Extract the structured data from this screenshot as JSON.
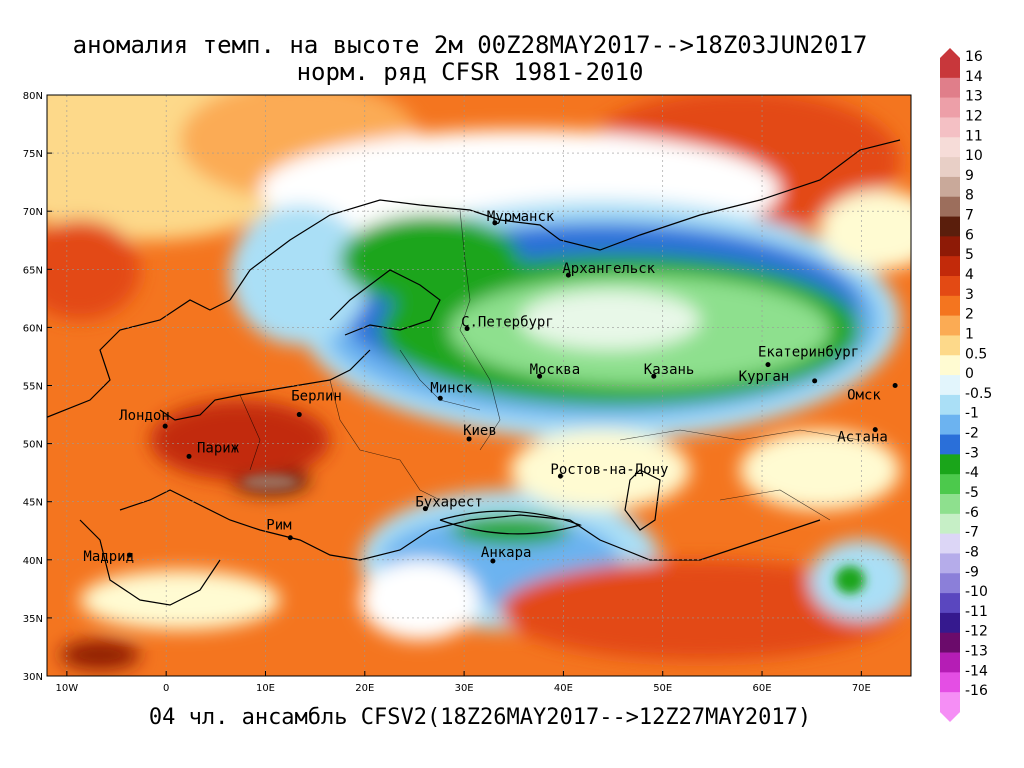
{
  "title": {
    "line1": "аномалия темп. на высоте 2м 00Z28MAY2017-->18Z03JUN2017",
    "line2": "норм. ряд CFSR 1981-2010"
  },
  "footer": "04 чл. ансамбль CFSV2(18Z26MAY2017-->12Z27MAY2017)",
  "lat_ticks": [
    "80N",
    "75N",
    "70N",
    "65N",
    "60N",
    "55N",
    "50N",
    "45N",
    "40N",
    "35N",
    "30N"
  ],
  "lon_ticks": [
    "10W",
    "0",
    "10E",
    "20E",
    "30E",
    "40E",
    "50E",
    "60E",
    "70E"
  ],
  "cities": [
    {
      "name": "Мурманск",
      "lon": 33.1,
      "lat": 69.0
    },
    {
      "name": "Архангельск",
      "lon": 40.5,
      "lat": 64.5
    },
    {
      "name": "С.Петербург",
      "lon": 30.3,
      "lat": 59.9
    },
    {
      "name": "Москва",
      "lon": 37.6,
      "lat": 55.8
    },
    {
      "name": "Казань",
      "lon": 49.1,
      "lat": 55.8
    },
    {
      "name": "Екатеринбург",
      "lon": 60.6,
      "lat": 56.8
    },
    {
      "name": "Курган",
      "lon": 65.3,
      "lat": 55.4
    },
    {
      "name": "Омск",
      "lon": 73.4,
      "lat": 55.0
    },
    {
      "name": "Астана",
      "lon": 71.4,
      "lat": 51.2
    },
    {
      "name": "Минск",
      "lon": 27.6,
      "lat": 53.9
    },
    {
      "name": "Берлин",
      "lon": 13.4,
      "lat": 52.5
    },
    {
      "name": "Лондон",
      "lon": -0.1,
      "lat": 51.5
    },
    {
      "name": "Париж",
      "lon": 2.3,
      "lat": 48.9
    },
    {
      "name": "Киев",
      "lon": 30.5,
      "lat": 50.4
    },
    {
      "name": "Ростов-на-Дону",
      "lon": 39.7,
      "lat": 47.2
    },
    {
      "name": "Бухарест",
      "lon": 26.1,
      "lat": 44.4
    },
    {
      "name": "Рим",
      "lon": 12.5,
      "lat": 41.9
    },
    {
      "name": "Мадрид",
      "lon": -3.7,
      "lat": 40.4
    },
    {
      "name": "Анкара",
      "lon": 32.9,
      "lat": 39.9
    }
  ],
  "colorbar": {
    "labels": [
      "16",
      "14",
      "13",
      "12",
      "11",
      "10",
      "9",
      "8",
      "7",
      "6",
      "5",
      "4",
      "3",
      "2",
      "1",
      "0.5",
      "0",
      "-0.5",
      "-1",
      "-2",
      "-3",
      "-4",
      "-5",
      "-6",
      "-7",
      "-8",
      "-9",
      "-10",
      "-11",
      "-12",
      "-13",
      "-14",
      "-16"
    ],
    "colors": [
      "#c8373b",
      "#e07e8a",
      "#ed9fa8",
      "#f4c0c4",
      "#f6dcd8",
      "#e8cfc6",
      "#c9a99a",
      "#9c6e5c",
      "#5a1e0c",
      "#8e1a06",
      "#c22a0a",
      "#e34a14",
      "#f4751f",
      "#fbab54",
      "#fdd98a",
      "#fffbd2",
      "#e2f5fc",
      "#aadff6",
      "#6cb3f0",
      "#2a6fd9",
      "#1aa51a",
      "#4cc94c",
      "#8ee08e",
      "#c6efc6",
      "#dcd6f6",
      "#b5acea",
      "#8b7fd9",
      "#5a47bf",
      "#35198e",
      "#6b0b6b",
      "#b51db5",
      "#e44ee4",
      "#f58ef5"
    ]
  },
  "colors": {
    "warm_strong": "#e34a14",
    "warm": "#f4751f",
    "warm_light": "#fbab54",
    "neutral": "#fffbd2",
    "cool_light": "#aadff6",
    "cool": "#6cb3f0",
    "cool_strong": "#2a6fd9",
    "green": "#1aa51a",
    "green_light": "#8ee08e"
  }
}
